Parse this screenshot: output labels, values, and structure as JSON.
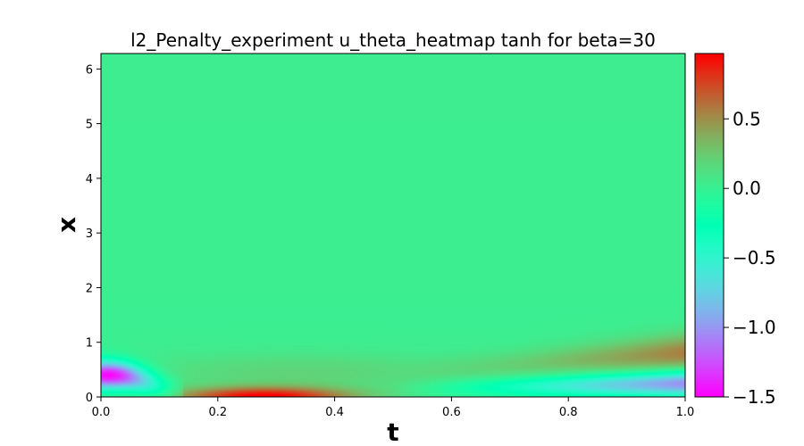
{
  "chart_data": {
    "type": "heatmap",
    "title": "l2_Penalty_experiment u_theta_heatmap tanh for beta=30",
    "xlabel": "t",
    "ylabel": "x",
    "xlim": [
      0.0,
      1.0
    ],
    "ylim": [
      0,
      6.283
    ],
    "x_ticks": [
      "0.0",
      "0.2",
      "0.4",
      "0.6",
      "0.8",
      "1.0"
    ],
    "y_ticks": [
      "0",
      "1",
      "2",
      "3",
      "4",
      "5",
      "6"
    ],
    "colorbar": {
      "colormap": "rainbow",
      "vmin": -1.5,
      "vmax": 0.97,
      "ticks": [
        "0.5",
        "0.0",
        "−0.5",
        "−1.0",
        "−1.5"
      ]
    },
    "description_of_field": "Mostly near 0.0 (light green) across the domain; strong positive band (~0.95, red) near x=0 for t between 0.15 and 0.45; negative lobe (~-1.2, blue) near x=0.3 at t=0; negative band (~-1.0) near x=0.2 growing toward t=1.0 with a positive band just above it",
    "features": [
      {
        "kind": "background",
        "value": 0.02
      },
      {
        "kind": "positive-band",
        "t_range": [
          0.13,
          0.5
        ],
        "x_center": 0.05,
        "peak": 0.95
      },
      {
        "kind": "negative-lobe",
        "t_range": [
          0.0,
          0.12
        ],
        "x_center": 0.35,
        "peak": -1.25
      },
      {
        "kind": "negative-band",
        "t_range": [
          0.55,
          1.0
        ],
        "x_center": 0.25,
        "peak": -1.05
      },
      {
        "kind": "positive-ridge",
        "t_range": [
          0.5,
          1.0
        ],
        "x_center": 0.7,
        "peak": 0.55
      }
    ]
  }
}
